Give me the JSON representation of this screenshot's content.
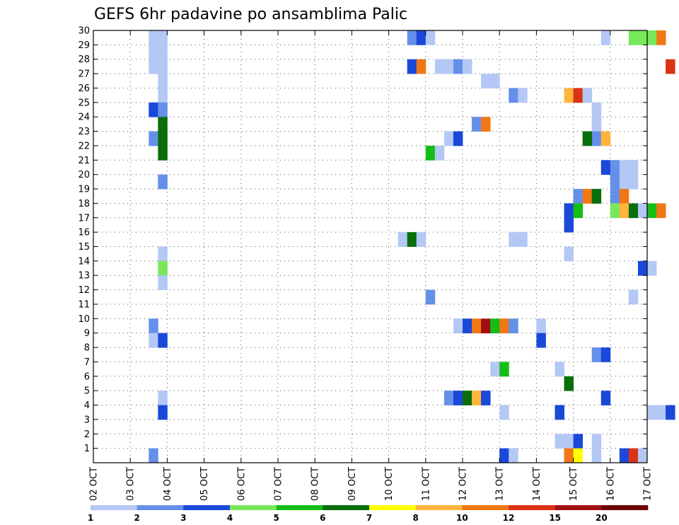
{
  "chart_data": {
    "type": "heatmap",
    "title": "GEFS 6hr padavine po ansamblima Palic",
    "xlabel": "",
    "ylabel": "",
    "x_ticks": [
      "02 OCT",
      "03 OCT",
      "04 OCT",
      "05 OCT",
      "06 OCT",
      "07 OCT",
      "08 OCT",
      "09 OCT",
      "10 OCT",
      "11 OCT",
      "12 OCT",
      "13 OCT",
      "14 OCT",
      "15 OCT",
      "16 OCT",
      "17 OCT"
    ],
    "xlim_days": [
      2,
      17
    ],
    "step_hours": 6,
    "y_ticks": [
      1,
      2,
      3,
      4,
      5,
      6,
      7,
      8,
      9,
      10,
      11,
      12,
      13,
      14,
      15,
      16,
      17,
      18,
      19,
      20,
      21,
      22,
      23,
      24,
      25,
      26,
      27,
      28,
      29,
      30
    ],
    "ylim": [
      0,
      30
    ],
    "grid": true,
    "legend": {
      "placement": "bottom",
      "labels": [
        "1",
        "2",
        "3",
        "4",
        "5",
        "6",
        "7",
        "8",
        "10",
        "12",
        "15",
        "20"
      ],
      "colors": [
        "#b4c8f5",
        "#6490ea",
        "#1a48d8",
        "#78e85a",
        "#14be14",
        "#0a6e0a",
        "#ffff00",
        "#ffb43c",
        "#f07814",
        "#dc3214",
        "#a00f0f",
        "#6e0000"
      ]
    },
    "cells": [
      [
        29,
        3.75,
        0
      ],
      [
        29,
        4.0,
        0
      ],
      [
        28,
        3.75,
        0
      ],
      [
        28,
        4.0,
        0
      ],
      [
        27,
        3.75,
        0
      ],
      [
        27,
        4.0,
        0
      ],
      [
        26,
        4.0,
        0
      ],
      [
        25,
        4.0,
        0
      ],
      [
        24,
        3.75,
        2
      ],
      [
        24,
        4.0,
        1
      ],
      [
        23,
        4.0,
        5
      ],
      [
        22,
        3.75,
        1
      ],
      [
        22,
        4.0,
        5
      ],
      [
        21,
        4.0,
        5
      ],
      [
        19,
        4.0,
        1
      ],
      [
        14,
        4.0,
        0
      ],
      [
        13,
        4.0,
        3
      ],
      [
        12,
        4.0,
        0
      ],
      [
        9,
        3.75,
        1
      ],
      [
        8,
        3.75,
        0
      ],
      [
        8,
        4.0,
        2
      ],
      [
        4,
        4.0,
        0
      ],
      [
        3,
        4.0,
        2
      ],
      [
        0,
        3.75,
        1
      ],
      [
        29,
        10.75,
        1
      ],
      [
        29,
        11.0,
        2
      ],
      [
        29,
        11.25,
        0
      ],
      [
        27,
        10.75,
        2
      ],
      [
        27,
        11.0,
        8
      ],
      [
        27,
        11.5,
        0
      ],
      [
        27,
        11.75,
        0
      ],
      [
        27,
        12.0,
        1
      ],
      [
        27,
        12.25,
        0
      ],
      [
        26,
        12.75,
        0
      ],
      [
        26,
        13.0,
        0
      ],
      [
        25,
        13.5,
        1
      ],
      [
        25,
        13.75,
        0
      ],
      [
        23,
        12.5,
        1
      ],
      [
        23,
        12.75,
        8
      ],
      [
        22,
        11.75,
        0
      ],
      [
        22,
        12.0,
        2
      ],
      [
        21,
        11.25,
        4
      ],
      [
        21,
        11.5,
        0
      ],
      [
        15,
        10.5,
        0
      ],
      [
        15,
        10.75,
        5
      ],
      [
        15,
        11.0,
        0
      ],
      [
        15,
        13.5,
        0
      ],
      [
        15,
        13.75,
        0
      ],
      [
        11,
        11.25,
        1
      ],
      [
        9,
        12.0,
        0
      ],
      [
        9,
        12.25,
        2
      ],
      [
        9,
        12.5,
        8
      ],
      [
        9,
        12.75,
        10
      ],
      [
        9,
        13.0,
        4
      ],
      [
        9,
        13.25,
        8
      ],
      [
        9,
        13.5,
        1
      ],
      [
        9,
        14.25,
        0
      ],
      [
        8,
        14.25,
        2
      ],
      [
        6,
        13.0,
        0
      ],
      [
        6,
        13.25,
        4
      ],
      [
        4,
        11.75,
        1
      ],
      [
        4,
        12.0,
        2
      ],
      [
        4,
        12.25,
        5
      ],
      [
        4,
        12.5,
        7
      ],
      [
        4,
        12.75,
        2
      ],
      [
        3,
        13.25,
        0
      ],
      [
        0,
        13.25,
        2
      ],
      [
        0,
        13.5,
        0
      ],
      [
        25,
        15.0,
        7
      ],
      [
        25,
        15.25,
        9
      ],
      [
        25,
        15.5,
        0
      ],
      [
        18,
        15.25,
        1
      ],
      [
        18,
        15.5,
        8
      ],
      [
        18,
        15.75,
        5
      ],
      [
        17,
        15.0,
        2
      ],
      [
        17,
        15.25,
        4
      ],
      [
        16,
        15.0,
        2
      ],
      [
        14,
        15.0,
        0
      ],
      [
        7,
        15.75,
        1
      ],
      [
        7,
        16.0,
        2
      ],
      [
        6,
        14.75,
        0
      ],
      [
        5,
        15.0,
        5
      ],
      [
        3,
        14.75,
        2
      ],
      [
        1,
        14.75,
        0
      ],
      [
        1,
        15.0,
        0
      ],
      [
        1,
        15.25,
        2
      ],
      [
        0,
        15.0,
        8
      ],
      [
        0,
        15.25,
        6
      ],
      [
        24,
        15.75,
        0
      ],
      [
        23,
        15.75,
        0
      ],
      [
        22,
        15.75,
        1
      ],
      [
        22,
        16.0,
        7
      ],
      [
        22,
        15.5,
        5
      ],
      [
        20,
        16.0,
        2
      ],
      [
        20,
        16.25,
        1
      ],
      [
        20,
        16.5,
        0
      ],
      [
        20,
        16.75,
        0
      ],
      [
        19,
        16.25,
        1
      ],
      [
        19,
        16.5,
        0
      ],
      [
        19,
        16.75,
        0
      ],
      [
        18,
        16.25,
        1
      ],
      [
        18,
        16.5,
        8
      ],
      [
        17,
        16.25,
        3
      ],
      [
        17,
        16.5,
        7
      ],
      [
        17,
        16.75,
        5
      ],
      [
        17,
        17.0,
        0
      ],
      [
        17,
        17.25,
        4
      ],
      [
        17,
        17.5,
        8
      ],
      [
        29,
        16.0,
        0
      ],
      [
        29,
        16.75,
        3
      ],
      [
        29,
        17.0,
        3
      ],
      [
        29,
        17.25,
        3
      ],
      [
        29,
        17.5,
        8
      ],
      [
        27,
        17.75,
        9
      ],
      [
        13,
        17.0,
        2
      ],
      [
        13,
        17.25,
        0
      ],
      [
        11,
        16.75,
        0
      ],
      [
        4,
        16.0,
        2
      ],
      [
        3,
        17.25,
        0
      ],
      [
        3,
        17.5,
        0
      ],
      [
        3,
        17.75,
        2
      ],
      [
        1,
        15.75,
        0
      ],
      [
        0,
        16.5,
        2
      ],
      [
        0,
        16.75,
        9
      ],
      [
        0,
        17.0,
        0
      ],
      [
        0,
        15.75,
        0
      ]
    ]
  }
}
